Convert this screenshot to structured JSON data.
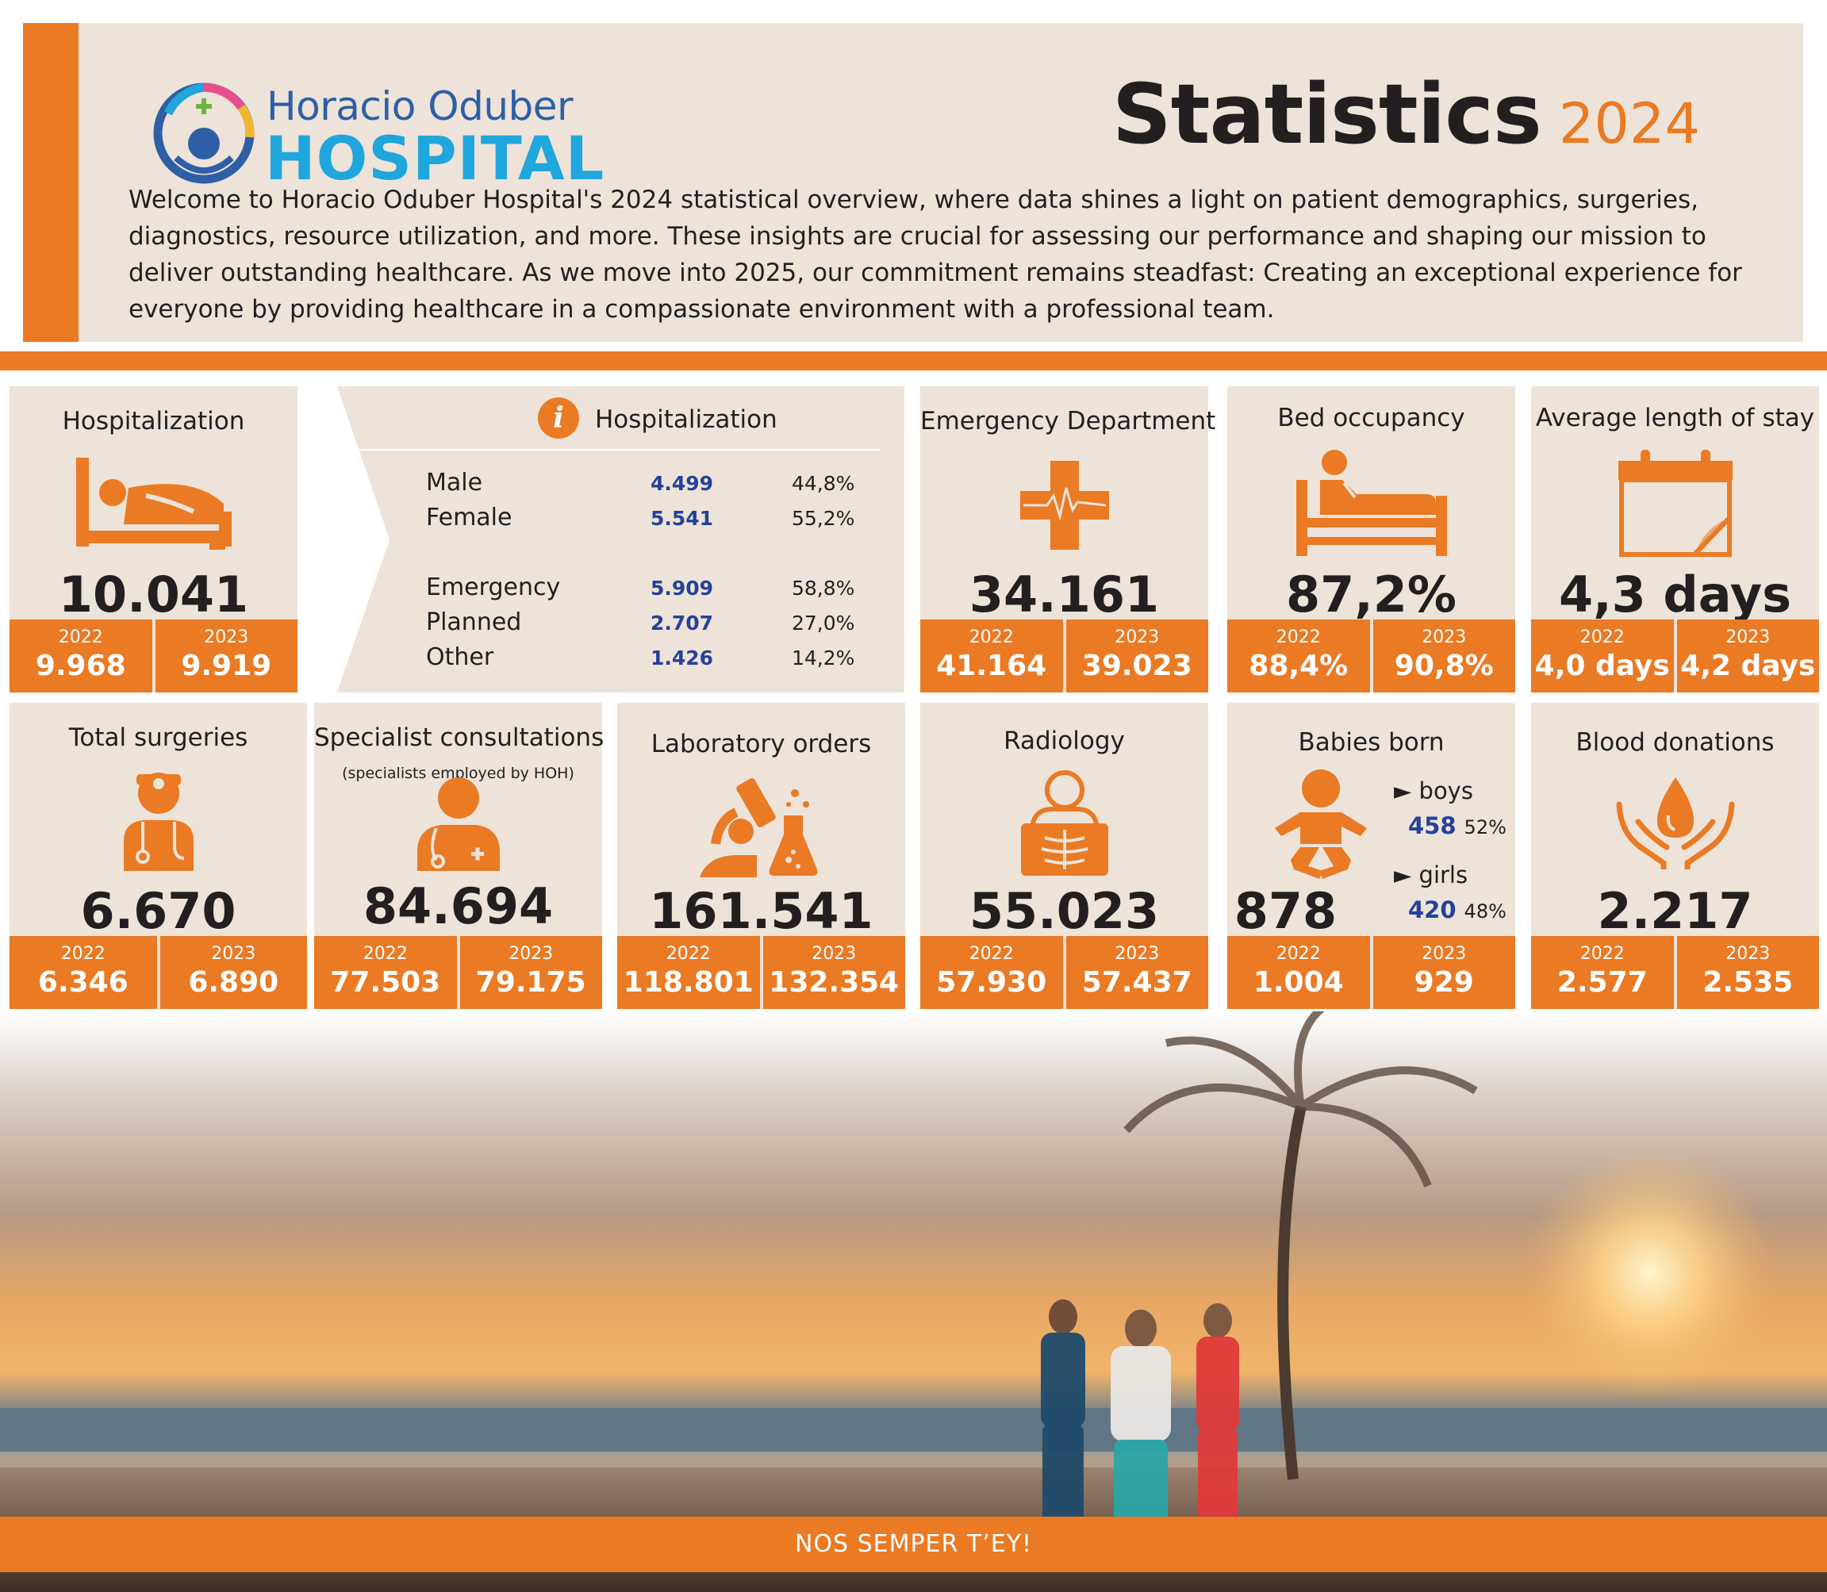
{
  "logo": {
    "line1": "Horacio Oduber",
    "line2": "HOSPITAL"
  },
  "title": {
    "main": "Statistics",
    "year": "2024"
  },
  "intro": "Welcome to Horacio Oduber Hospital's 2024 statistical overview, where data shines a light on patient demographics, surgeries, diagnostics, resource utilization, and more. These insights are crucial for assessing our performance and shaping our mission to deliver outstanding healthcare. As we move into 2025, our commitment remains steadfast: Creating an exceptional experience for everyone by providing healthcare in a compassionate environment with a professional team.",
  "colors": {
    "accent": "#ea7a24",
    "panel": "#ede3d8",
    "blue": "#24429a",
    "logo_blue": "#2e5fa6",
    "logo_cyan": "#1fa6dc"
  },
  "year_a": "2022",
  "year_b": "2023",
  "cards": {
    "hospitalization": {
      "title": "Hospitalization",
      "value": "10.041",
      "v2022": "9.968",
      "v2023": "9.919",
      "icon": "hospital-bed-icon"
    },
    "emergency": {
      "title": "Emergency Department",
      "value": "34.161",
      "v2022": "41.164",
      "v2023": "39.023",
      "icon": "medical-cross-icon"
    },
    "bed_occupancy": {
      "title": "Bed occupancy",
      "value": "87,2%",
      "v2022": "88,4%",
      "v2023": "90,8%",
      "icon": "patient-bed-icon"
    },
    "avg_stay": {
      "title": "Average length of stay",
      "value": "4,3 days",
      "v2022": "4,0 days",
      "v2023": "4,2 days",
      "icon": "calendar-icon"
    },
    "surgeries": {
      "title": "Total surgeries",
      "value": "6.670",
      "v2022": "6.346",
      "v2023": "6.890",
      "icon": "surgeon-icon"
    },
    "specialists": {
      "title": "Specialist consultations",
      "subtitle": "(specialists employed by HOH)",
      "value": "84.694",
      "v2022": "77.503",
      "v2023": "79.175",
      "icon": "doctor-icon"
    },
    "laboratory": {
      "title": "Laboratory orders",
      "value": "161.541",
      "v2022": "118.801",
      "v2023": "132.354",
      "icon": "microscope-icon"
    },
    "radiology": {
      "title": "Radiology",
      "value": "55.023",
      "v2022": "57.930",
      "v2023": "57.437",
      "icon": "xray-icon"
    },
    "babies": {
      "title": "Babies born",
      "value": "878",
      "v2022": "1.004",
      "v2023": "929",
      "icon": "baby-icon",
      "boys_label": "boys",
      "boys": "458",
      "boys_pct": "52%",
      "girls_label": "girls",
      "girls": "420",
      "girls_pct": "48%"
    },
    "blood": {
      "title": "Blood donations",
      "value": "2.217",
      "v2022": "2.577",
      "v2023": "2.535",
      "icon": "blood-drop-hands-icon"
    }
  },
  "breakdown": {
    "title": "Hospitalization",
    "info_icon": "i",
    "rows": [
      {
        "label": "Male",
        "count": "4.499",
        "pct": "44,8%"
      },
      {
        "label": "Female",
        "count": "5.541",
        "pct": "55,2%"
      },
      {
        "label": "Emergency",
        "count": "5.909",
        "pct": "58,8%"
      },
      {
        "label": "Planned",
        "count": "2.707",
        "pct": "27,0%"
      },
      {
        "label": "Other",
        "count": "1.426",
        "pct": "14,2%"
      }
    ]
  },
  "footer": "NOS SEMPER T’EY!"
}
